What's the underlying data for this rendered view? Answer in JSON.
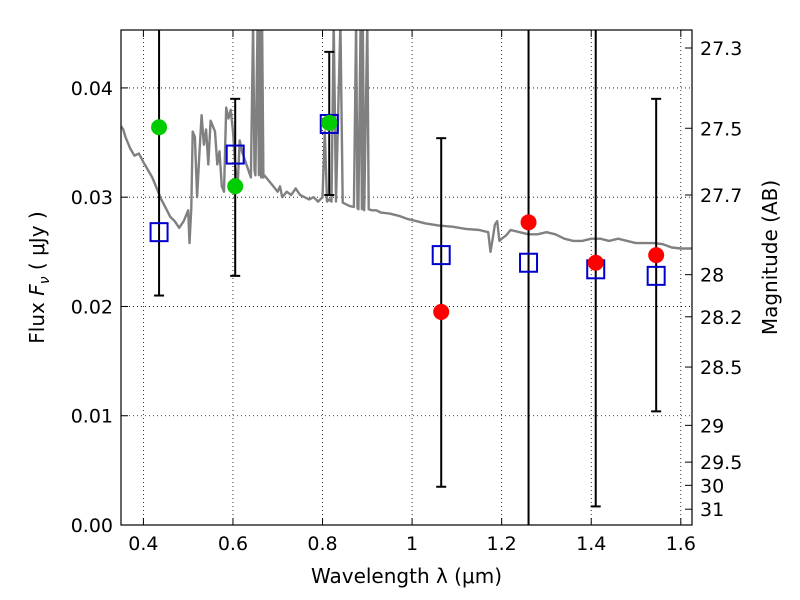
{
  "chart_data": {
    "type": "scatter",
    "xlabel": "Wavelength  λ (μm)",
    "ylabel": "Flux  F_ν  ( μJy )",
    "ylabel_parts": {
      "pre": "Flux  ",
      "sym": "F",
      "sub": "ν",
      "post": "  ( μJy )"
    },
    "y2label": "Magnitude (AB)",
    "xlim": [
      0.35,
      1.625
    ],
    "ylim": [
      0.0,
      0.0453
    ],
    "grid": true,
    "x_ticks": [
      {
        "value": 0.4,
        "label": "0.4"
      },
      {
        "value": 0.6,
        "label": "0.6"
      },
      {
        "value": 0.8,
        "label": "0.8"
      },
      {
        "value": 1.0,
        "label": "1"
      },
      {
        "value": 1.2,
        "label": "1.2"
      },
      {
        "value": 1.4,
        "label": "1.4"
      },
      {
        "value": 1.6,
        "label": "1.6"
      }
    ],
    "y_ticks": [
      {
        "value": 0.0,
        "label": "0.00"
      },
      {
        "value": 0.01,
        "label": "0.01"
      },
      {
        "value": 0.02,
        "label": "0.02"
      },
      {
        "value": 0.03,
        "label": "0.03"
      },
      {
        "value": 0.04,
        "label": "0.04"
      }
    ],
    "y2_ticks": [
      {
        "mag": 27.3,
        "label": "27.3"
      },
      {
        "mag": 27.5,
        "label": "27.5"
      },
      {
        "mag": 27.7,
        "label": "27.7"
      },
      {
        "mag": 28.0,
        "label": "28"
      },
      {
        "mag": 28.2,
        "label": "28.2"
      },
      {
        "mag": 28.5,
        "label": "28.5"
      },
      {
        "mag": 29.0,
        "label": "29"
      },
      {
        "mag": 29.5,
        "label": "29.5"
      },
      {
        "mag": 30.0,
        "label": "30"
      },
      {
        "mag": 31.0,
        "label": "31"
      }
    ],
    "model_sed": {
      "color": "#808080",
      "points": [
        [
          0.35,
          0.0365
        ],
        [
          0.355,
          0.0362
        ],
        [
          0.36,
          0.0355
        ],
        [
          0.37,
          0.0345
        ],
        [
          0.38,
          0.0338
        ],
        [
          0.39,
          0.034
        ],
        [
          0.4,
          0.0332
        ],
        [
          0.41,
          0.0325
        ],
        [
          0.42,
          0.0318
        ],
        [
          0.43,
          0.0308
        ],
        [
          0.44,
          0.0298
        ],
        [
          0.45,
          0.029
        ],
        [
          0.46,
          0.0282
        ],
        [
          0.47,
          0.0278
        ],
        [
          0.48,
          0.0272
        ],
        [
          0.49,
          0.0278
        ],
        [
          0.5,
          0.0288
        ],
        [
          0.503,
          0.0258
        ],
        [
          0.507,
          0.029
        ],
        [
          0.51,
          0.036
        ],
        [
          0.515,
          0.0355
        ],
        [
          0.52,
          0.03
        ],
        [
          0.525,
          0.034
        ],
        [
          0.53,
          0.0375
        ],
        [
          0.535,
          0.0348
        ],
        [
          0.54,
          0.0362
        ],
        [
          0.545,
          0.033
        ],
        [
          0.55,
          0.037
        ],
        [
          0.56,
          0.036
        ],
        [
          0.565,
          0.033
        ],
        [
          0.57,
          0.0342
        ],
        [
          0.575,
          0.031
        ],
        [
          0.58,
          0.0305
        ],
        [
          0.585,
          0.0382
        ],
        [
          0.59,
          0.0372
        ],
        [
          0.595,
          0.038
        ],
        [
          0.6,
          0.036
        ],
        [
          0.605,
          0.033
        ],
        [
          0.61,
          0.0305
        ],
        [
          0.615,
          0.0352
        ],
        [
          0.62,
          0.0342
        ],
        [
          0.63,
          0.033
        ],
        [
          0.64,
          0.0318
        ],
        [
          0.645,
          0.046
        ],
        [
          0.648,
          0.0325
        ],
        [
          0.65,
          0.032
        ],
        [
          0.655,
          0.046
        ],
        [
          0.658,
          0.032
        ],
        [
          0.66,
          0.046
        ],
        [
          0.663,
          0.0318
        ],
        [
          0.665,
          0.046
        ],
        [
          0.668,
          0.0318
        ],
        [
          0.67,
          0.032
        ],
        [
          0.68,
          0.0315
        ],
        [
          0.69,
          0.031
        ],
        [
          0.7,
          0.0305
        ],
        [
          0.705,
          0.031
        ],
        [
          0.71,
          0.03
        ],
        [
          0.72,
          0.0305
        ],
        [
          0.73,
          0.0302
        ],
        [
          0.74,
          0.0308
        ],
        [
          0.75,
          0.0302
        ],
        [
          0.76,
          0.03
        ],
        [
          0.77,
          0.0298
        ],
        [
          0.78,
          0.03
        ],
        [
          0.79,
          0.0296
        ],
        [
          0.8,
          0.03
        ],
        [
          0.805,
          0.036
        ],
        [
          0.81,
          0.0296
        ],
        [
          0.815,
          0.0298
        ],
        [
          0.82,
          0.0296
        ],
        [
          0.825,
          0.046
        ],
        [
          0.83,
          0.0296
        ],
        [
          0.84,
          0.046
        ],
        [
          0.845,
          0.0295
        ],
        [
          0.85,
          0.0294
        ],
        [
          0.86,
          0.0292
        ],
        [
          0.87,
          0.0291
        ],
        [
          0.875,
          0.046
        ],
        [
          0.878,
          0.029
        ],
        [
          0.88,
          0.0289
        ],
        [
          0.885,
          0.046
        ],
        [
          0.888,
          0.0289
        ],
        [
          0.89,
          0.046
        ],
        [
          0.893,
          0.0288
        ],
        [
          0.9,
          0.046
        ],
        [
          0.903,
          0.0289
        ],
        [
          0.91,
          0.0288
        ],
        [
          0.92,
          0.0288
        ],
        [
          0.93,
          0.0286
        ],
        [
          0.95,
          0.0285
        ],
        [
          0.97,
          0.0283
        ],
        [
          0.99,
          0.028
        ],
        [
          1.01,
          0.0278
        ],
        [
          1.03,
          0.0276
        ],
        [
          1.06,
          0.0274
        ],
        [
          1.09,
          0.0273
        ],
        [
          1.12,
          0.0271
        ],
        [
          1.15,
          0.027
        ],
        [
          1.17,
          0.0268
        ],
        [
          1.175,
          0.025
        ],
        [
          1.18,
          0.0262
        ],
        [
          1.185,
          0.0275
        ],
        [
          1.19,
          0.0278
        ],
        [
          1.195,
          0.026
        ],
        [
          1.2,
          0.0262
        ],
        [
          1.21,
          0.0265
        ],
        [
          1.22,
          0.027
        ],
        [
          1.24,
          0.0268
        ],
        [
          1.26,
          0.0266
        ],
        [
          1.28,
          0.0266
        ],
        [
          1.3,
          0.0268
        ],
        [
          1.32,
          0.0266
        ],
        [
          1.34,
          0.0262
        ],
        [
          1.36,
          0.026
        ],
        [
          1.38,
          0.026
        ],
        [
          1.4,
          0.0262
        ],
        [
          1.42,
          0.0262
        ],
        [
          1.44,
          0.026
        ],
        [
          1.46,
          0.0262
        ],
        [
          1.48,
          0.026
        ],
        [
          1.5,
          0.0258
        ],
        [
          1.52,
          0.0258
        ],
        [
          1.54,
          0.0258
        ],
        [
          1.56,
          0.0257
        ],
        [
          1.58,
          0.0254
        ],
        [
          1.6,
          0.0253
        ],
        [
          1.625,
          0.0253
        ]
      ]
    },
    "series": [
      {
        "marker": "square-open",
        "color": "#0000cc",
        "points": [
          {
            "x": 0.435,
            "y": 0.0268
          },
          {
            "x": 0.605,
            "y": 0.0339
          },
          {
            "x": 0.815,
            "y": 0.0367
          },
          {
            "x": 1.065,
            "y": 0.0247
          },
          {
            "x": 1.26,
            "y": 0.024
          },
          {
            "x": 1.41,
            "y": 0.0234
          },
          {
            "x": 1.545,
            "y": 0.0228
          }
        ]
      },
      {
        "marker": "circle-filled",
        "color": "#00cc00",
        "points": [
          {
            "x": 0.435,
            "y": 0.0364
          },
          {
            "x": 0.605,
            "y": 0.031
          },
          {
            "x": 0.815,
            "y": 0.0368
          }
        ]
      },
      {
        "marker": "circle-filled",
        "color": "#ff0000",
        "points": [
          {
            "x": 1.065,
            "y": 0.0195
          },
          {
            "x": 1.26,
            "y": 0.0277
          },
          {
            "x": 1.41,
            "y": 0.024
          },
          {
            "x": 1.545,
            "y": 0.0247
          }
        ]
      }
    ],
    "error_bars": [
      {
        "x": 0.435,
        "low": 0.021,
        "high": 0.0453,
        "cap_low": true,
        "cap_high": false
      },
      {
        "x": 0.605,
        "low": 0.0228,
        "high": 0.039,
        "cap_low": true,
        "cap_high": true
      },
      {
        "x": 0.815,
        "low": 0.0302,
        "high": 0.0433,
        "cap_low": true,
        "cap_high": true
      },
      {
        "x": 1.065,
        "low": 0.0035,
        "high": 0.0354,
        "cap_low": true,
        "cap_high": true
      },
      {
        "x": 1.26,
        "low": 0.0,
        "high": 0.0453,
        "cap_low": false,
        "cap_high": false
      },
      {
        "x": 1.41,
        "low": 0.0017,
        "high": 0.0453,
        "cap_low": true,
        "cap_high": false
      },
      {
        "x": 1.545,
        "low": 0.0104,
        "high": 0.039,
        "cap_low": true,
        "cap_high": true
      }
    ]
  }
}
